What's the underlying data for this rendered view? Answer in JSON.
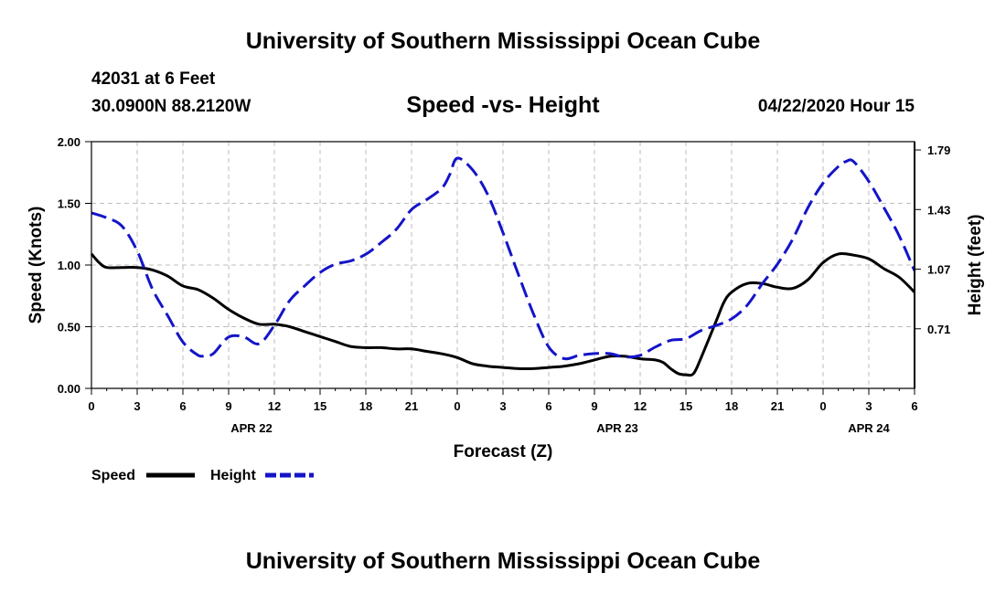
{
  "header": {
    "title": "University of Southern Mississippi Ocean Cube",
    "station": "42031 at 6 Feet",
    "coords": "30.0900N 88.2120W",
    "chart_title": "Speed -vs- Height",
    "date": "04/22/2020 Hour 15"
  },
  "footer": {
    "title": "University of Southern Mississippi Ocean Cube"
  },
  "colors": {
    "speed": "#000000",
    "height": "#1414c8",
    "grid": "#bdbdbd"
  },
  "chart_data": {
    "type": "line",
    "title": "Speed -vs- Height",
    "xlabel": "Forecast (Z)",
    "ylabel": "Speed (Knots)",
    "y2label": "Height (feet)",
    "x_range": [
      0,
      54
    ],
    "x_ticks": [
      {
        "x": 0,
        "label": "0"
      },
      {
        "x": 3,
        "label": "3"
      },
      {
        "x": 6,
        "label": "6"
      },
      {
        "x": 9,
        "label": "9"
      },
      {
        "x": 12,
        "label": "12"
      },
      {
        "x": 15,
        "label": "15"
      },
      {
        "x": 18,
        "label": "18"
      },
      {
        "x": 21,
        "label": "21"
      },
      {
        "x": 24,
        "label": "0"
      },
      {
        "x": 27,
        "label": "3"
      },
      {
        "x": 30,
        "label": "6"
      },
      {
        "x": 33,
        "label": "9"
      },
      {
        "x": 36,
        "label": "12"
      },
      {
        "x": 39,
        "label": "15"
      },
      {
        "x": 42,
        "label": "18"
      },
      {
        "x": 45,
        "label": "21"
      },
      {
        "x": 48,
        "label": "0"
      },
      {
        "x": 51,
        "label": "3"
      },
      {
        "x": 54,
        "label": "6"
      }
    ],
    "day_labels": [
      {
        "x": 10.5,
        "label": "APR 22"
      },
      {
        "x": 34.5,
        "label": "APR 23"
      },
      {
        "x": 51,
        "label": "APR 24"
      }
    ],
    "ylim": [
      0,
      2.0
    ],
    "y_ticks": [
      {
        "v": 0,
        "label": "0.00"
      },
      {
        "v": 0.5,
        "label": "0.50"
      },
      {
        "v": 1.0,
        "label": "1.00"
      },
      {
        "v": 1.5,
        "label": "1.50"
      },
      {
        "v": 2.0,
        "label": "2.00"
      }
    ],
    "y2lim": [
      0.35,
      1.84
    ],
    "y2_ticks": [
      {
        "v": 0.71,
        "label": "0.71"
      },
      {
        "v": 1.07,
        "label": "1.07"
      },
      {
        "v": 1.43,
        "label": "1.43"
      },
      {
        "v": 1.79,
        "label": "1.79"
      }
    ],
    "grid": true,
    "legend": [
      "Speed",
      "Height"
    ],
    "series": [
      {
        "name": "Speed",
        "axis": "left",
        "style": "solid",
        "x": [
          0,
          0.5,
          1,
          2,
          3,
          4,
          5,
          6,
          7,
          8,
          9,
          10,
          11,
          12,
          13,
          14,
          15,
          16,
          17,
          18,
          19,
          20,
          21,
          22,
          23,
          24,
          25,
          26,
          27,
          28,
          29,
          30,
          31,
          32,
          33,
          34,
          35,
          36,
          37,
          37.5,
          38,
          38.5,
          39,
          39.5,
          40,
          41,
          41.5,
          42,
          43,
          44,
          45,
          46,
          47,
          48,
          49,
          50,
          51,
          52,
          53,
          54
        ],
        "y": [
          1.09,
          1.02,
          0.98,
          0.98,
          0.98,
          0.96,
          0.91,
          0.83,
          0.8,
          0.73,
          0.64,
          0.57,
          0.52,
          0.52,
          0.5,
          0.46,
          0.42,
          0.38,
          0.34,
          0.33,
          0.33,
          0.32,
          0.32,
          0.3,
          0.28,
          0.25,
          0.2,
          0.18,
          0.17,
          0.16,
          0.16,
          0.17,
          0.18,
          0.2,
          0.23,
          0.26,
          0.26,
          0.24,
          0.23,
          0.21,
          0.16,
          0.12,
          0.11,
          0.12,
          0.25,
          0.55,
          0.7,
          0.78,
          0.85,
          0.85,
          0.82,
          0.81,
          0.88,
          1.02,
          1.09,
          1.08,
          1.05,
          0.97,
          0.9,
          0.78
        ]
      },
      {
        "name": "Height",
        "axis": "right",
        "style": "dashed",
        "x": [
          0,
          1,
          2,
          3,
          4,
          5,
          6,
          7,
          7.5,
          8,
          9,
          10,
          11,
          12,
          13,
          14,
          15,
          16,
          17,
          18,
          19,
          20,
          21,
          22,
          23,
          23.5,
          24,
          25,
          26,
          27,
          28,
          29,
          30,
          31,
          32,
          33,
          34,
          35,
          36,
          37,
          38,
          39,
          40,
          41,
          42,
          43,
          44,
          45,
          46,
          47,
          48,
          49,
          49.5,
          50,
          51,
          52,
          53,
          54
        ],
        "y": [
          1.41,
          1.38,
          1.33,
          1.18,
          0.95,
          0.79,
          0.63,
          0.55,
          0.55,
          0.56,
          0.66,
          0.66,
          0.62,
          0.73,
          0.88,
          0.97,
          1.05,
          1.1,
          1.12,
          1.16,
          1.23,
          1.31,
          1.43,
          1.49,
          1.56,
          1.64,
          1.74,
          1.67,
          1.52,
          1.29,
          1.04,
          0.8,
          0.6,
          0.53,
          0.55,
          0.56,
          0.56,
          0.54,
          0.55,
          0.6,
          0.64,
          0.65,
          0.7,
          0.73,
          0.77,
          0.85,
          0.98,
          1.1,
          1.25,
          1.44,
          1.59,
          1.69,
          1.72,
          1.72,
          1.6,
          1.44,
          1.27,
          1.06
        ]
      }
    ]
  }
}
